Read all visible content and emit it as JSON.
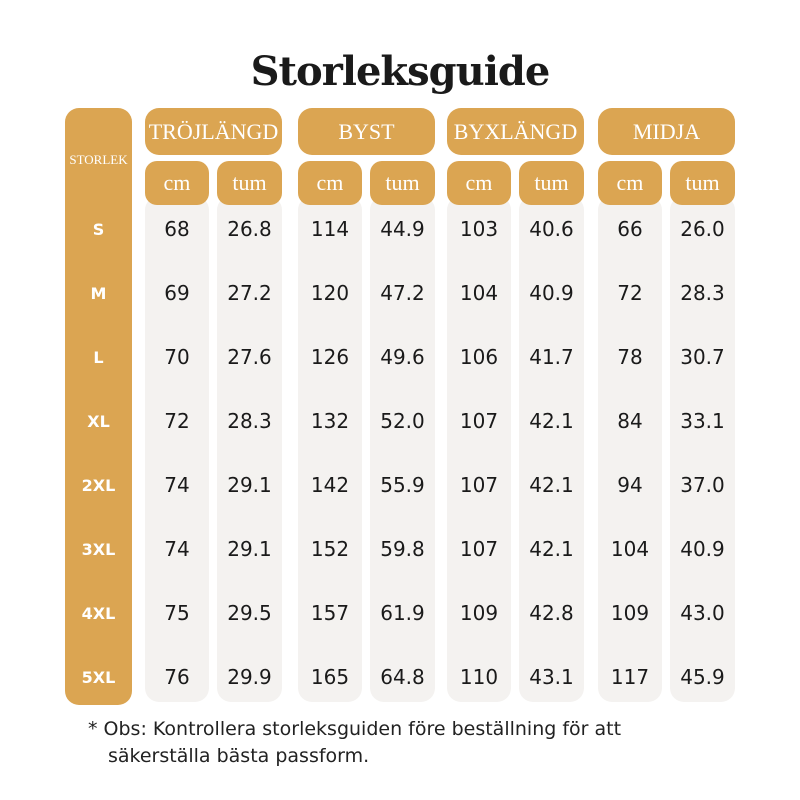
{
  "title": "Storleksguide",
  "table": {
    "size_header": "STORLEK",
    "groups": [
      {
        "name": "TRÖJLÄNGD",
        "units": [
          "cm",
          "tum"
        ]
      },
      {
        "name": "BYST",
        "units": [
          "cm",
          "tum"
        ]
      },
      {
        "name": "BYXLÄNGD",
        "units": [
          "cm",
          "tum"
        ]
      },
      {
        "name": "MIDJA",
        "units": [
          "cm",
          "tum"
        ]
      }
    ],
    "rows": [
      {
        "size": "S",
        "values": [
          "68",
          "26.8",
          "114",
          "44.9",
          "103",
          "40.6",
          "66",
          "26.0"
        ]
      },
      {
        "size": "M",
        "values": [
          "69",
          "27.2",
          "120",
          "47.2",
          "104",
          "40.9",
          "72",
          "28.3"
        ]
      },
      {
        "size": "L",
        "values": [
          "70",
          "27.6",
          "126",
          "49.6",
          "106",
          "41.7",
          "78",
          "30.7"
        ]
      },
      {
        "size": "XL",
        "values": [
          "72",
          "28.3",
          "132",
          "52.0",
          "107",
          "42.1",
          "84",
          "33.1"
        ]
      },
      {
        "size": "2XL",
        "values": [
          "74",
          "29.1",
          "142",
          "55.9",
          "107",
          "42.1",
          "94",
          "37.0"
        ]
      },
      {
        "size": "3XL",
        "values": [
          "74",
          "29.1",
          "152",
          "59.8",
          "107",
          "42.1",
          "104",
          "40.9"
        ]
      },
      {
        "size": "4XL",
        "values": [
          "75",
          "29.5",
          "157",
          "61.9",
          "109",
          "42.8",
          "109",
          "43.0"
        ]
      },
      {
        "size": "5XL",
        "values": [
          "76",
          "29.9",
          "165",
          "64.8",
          "110",
          "43.1",
          "117",
          "45.9"
        ]
      }
    ]
  },
  "note": "* Obs: Kontrollera storleksguiden före beställning för att säkerställa bästa passform."
}
